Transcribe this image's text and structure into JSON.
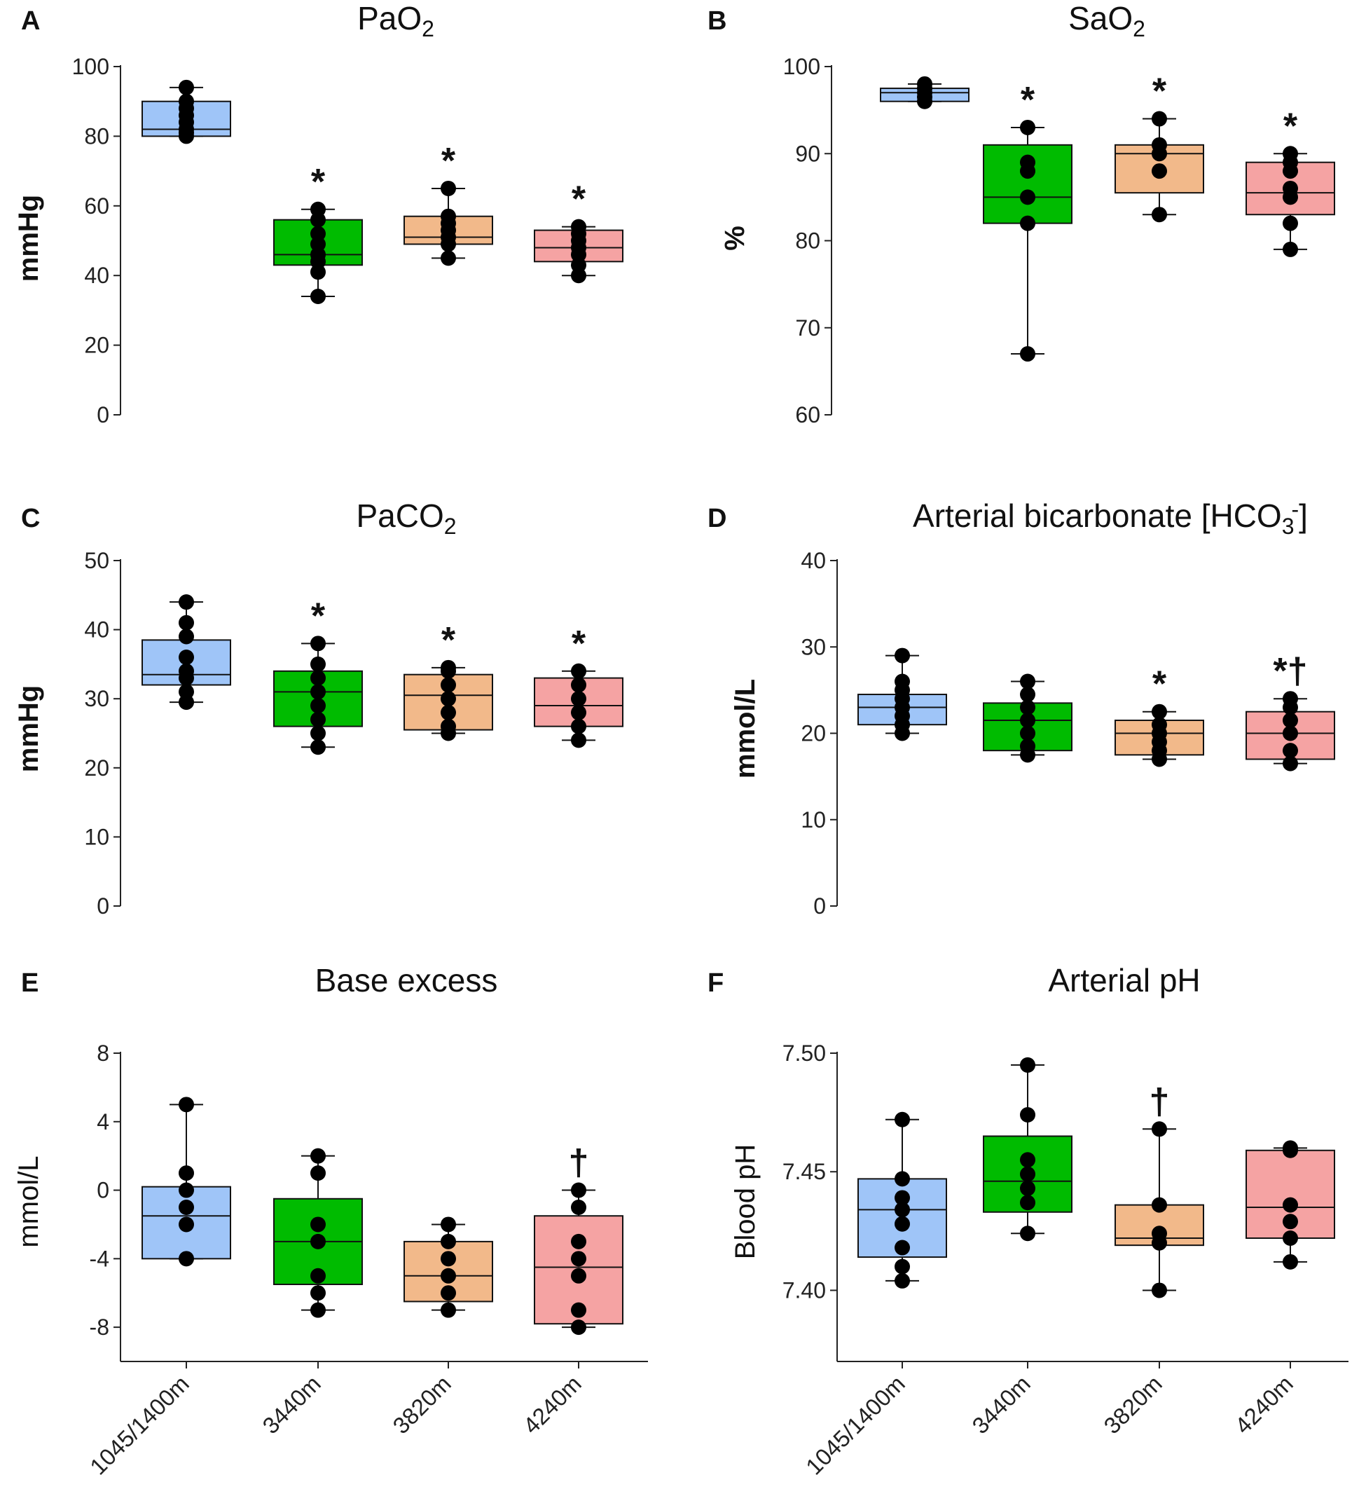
{
  "groups": [
    "1045/1400m",
    "3440m",
    "3820m",
    "4240m"
  ],
  "group_colors": [
    "#9fc5f8",
    "#00bb00",
    "#f2b98a",
    "#f5a3a3"
  ],
  "chart_data": [
    {
      "panel": "A",
      "type": "boxplot",
      "title": "PaO",
      "title_sub": "2",
      "title_sup": "",
      "title_tail": "",
      "ylabel": "mmHg",
      "ylabel_bold": true,
      "ylim": [
        0,
        100
      ],
      "yticks": [
        0,
        20,
        40,
        60,
        80,
        100
      ],
      "ytick_labels": [
        "0",
        "20",
        "40",
        "60",
        "80",
        "100"
      ],
      "boxes": [
        {
          "group": "1045/1400m",
          "min": 80,
          "q1": 80,
          "median": 82,
          "q3": 90,
          "max": 94,
          "points": [
            80,
            81,
            82,
            84,
            86,
            88,
            90,
            94
          ],
          "sig": ""
        },
        {
          "group": "3440m",
          "min": 34,
          "q1": 43,
          "median": 46,
          "q3": 56,
          "max": 59,
          "points": [
            34,
            41,
            44,
            46,
            49,
            52,
            56,
            59
          ],
          "sig": "*"
        },
        {
          "group": "3820m",
          "min": 45,
          "q1": 49,
          "median": 51,
          "q3": 57,
          "max": 65,
          "points": [
            45,
            49,
            51,
            53,
            55,
            57,
            65
          ],
          "sig": "*"
        },
        {
          "group": "4240m",
          "min": 40,
          "q1": 44,
          "median": 48,
          "q3": 53,
          "max": 54,
          "points": [
            40,
            43,
            46,
            48,
            50,
            52,
            54
          ],
          "sig": "*"
        }
      ]
    },
    {
      "panel": "B",
      "type": "boxplot",
      "title": "SaO",
      "title_sub": "2",
      "title_sup": "",
      "title_tail": "",
      "ylabel": "%",
      "ylabel_bold": true,
      "ylim": [
        60,
        100
      ],
      "yticks": [
        60,
        70,
        80,
        90,
        100
      ],
      "ytick_labels": [
        "60",
        "70",
        "80",
        "90",
        "100"
      ],
      "boxes": [
        {
          "group": "1045/1400m",
          "min": 96,
          "q1": 96,
          "median": 97,
          "q3": 97.5,
          "max": 98,
          "points": [
            96,
            96.5,
            97,
            97.5,
            98
          ],
          "sig": ""
        },
        {
          "group": "3440m",
          "min": 67,
          "q1": 82,
          "median": 85,
          "q3": 91,
          "max": 93,
          "points": [
            67,
            82,
            85,
            88,
            89,
            93
          ],
          "sig": "*"
        },
        {
          "group": "3820m",
          "min": 83,
          "q1": 85.5,
          "median": 90,
          "q3": 91,
          "max": 94,
          "points": [
            83,
            88,
            90,
            91,
            94
          ],
          "sig": "*"
        },
        {
          "group": "4240m",
          "min": 79,
          "q1": 83,
          "median": 85.5,
          "q3": 89,
          "max": 90,
          "points": [
            79,
            82,
            85,
            86,
            88,
            89,
            90
          ],
          "sig": "*"
        }
      ]
    },
    {
      "panel": "C",
      "type": "boxplot",
      "title": "PaCO",
      "title_sub": "2",
      "title_sup": "",
      "title_tail": "",
      "ylabel": "mmHg",
      "ylabel_bold": true,
      "ylim": [
        0,
        50
      ],
      "yticks": [
        0,
        10,
        20,
        30,
        40,
        50
      ],
      "ytick_labels": [
        "0",
        "10",
        "20",
        "30",
        "40",
        "50"
      ],
      "boxes": [
        {
          "group": "1045/1400m",
          "min": 29.5,
          "q1": 32,
          "median": 33.5,
          "q3": 38.5,
          "max": 44,
          "points": [
            29.5,
            31,
            33,
            34,
            36,
            39,
            41,
            44
          ],
          "sig": ""
        },
        {
          "group": "3440m",
          "min": 23,
          "q1": 26,
          "median": 31,
          "q3": 34,
          "max": 38,
          "points": [
            23,
            25,
            27,
            29,
            31,
            33,
            35,
            38
          ],
          "sig": "*"
        },
        {
          "group": "3820m",
          "min": 25,
          "q1": 25.5,
          "median": 30.5,
          "q3": 33.5,
          "max": 34.5,
          "points": [
            25,
            26,
            28,
            30,
            32,
            34,
            34.5
          ],
          "sig": "*"
        },
        {
          "group": "4240m",
          "min": 24,
          "q1": 26,
          "median": 29,
          "q3": 33,
          "max": 34,
          "points": [
            24,
            26,
            28,
            30,
            32,
            34
          ],
          "sig": "*"
        }
      ]
    },
    {
      "panel": "D",
      "type": "boxplot",
      "title": "Arterial bicarbonate [HCO",
      "title_sub": "3",
      "title_sup": "-",
      "title_tail": "]",
      "ylabel": "mmol/L",
      "ylabel_bold": true,
      "ylim": [
        0,
        40
      ],
      "yticks": [
        0,
        10,
        20,
        30,
        40
      ],
      "ytick_labels": [
        "0",
        "10",
        "20",
        "30",
        "40"
      ],
      "boxes": [
        {
          "group": "1045/1400m",
          "min": 20,
          "q1": 21,
          "median": 23,
          "q3": 24.5,
          "max": 29,
          "points": [
            20,
            21,
            22,
            23,
            24,
            25,
            26,
            29
          ],
          "sig": ""
        },
        {
          "group": "3440m",
          "min": 17.5,
          "q1": 18,
          "median": 21.5,
          "q3": 23.5,
          "max": 26,
          "points": [
            17.5,
            18.5,
            20,
            21.5,
            23,
            24.5,
            26
          ],
          "sig": ""
        },
        {
          "group": "3820m",
          "min": 17,
          "q1": 17.5,
          "median": 20,
          "q3": 21.5,
          "max": 22.5,
          "points": [
            17,
            18,
            19,
            20,
            21,
            22.5
          ],
          "sig": "*"
        },
        {
          "group": "4240m",
          "min": 16.5,
          "q1": 17,
          "median": 20,
          "q3": 22.5,
          "max": 24,
          "points": [
            16.5,
            18,
            20,
            21.5,
            23,
            24
          ],
          "sig": "*†"
        }
      ]
    },
    {
      "panel": "E",
      "type": "boxplot",
      "title": "Base excess",
      "title_sub": "",
      "title_sup": "",
      "title_tail": "",
      "ylabel": "mmol/L",
      "ylabel_bold": false,
      "ylim": [
        -10,
        8
      ],
      "yticks": [
        -8,
        -4,
        0,
        4,
        8
      ],
      "ytick_labels": [
        "-8",
        "-4",
        "0",
        "4",
        "8"
      ],
      "boxes": [
        {
          "group": "1045/1400m",
          "min": -4,
          "q1": -4,
          "median": -1.5,
          "q3": 0.2,
          "max": 5,
          "points": [
            -4,
            -2,
            -1,
            0,
            1,
            5
          ],
          "sig": ""
        },
        {
          "group": "3440m",
          "min": -7,
          "q1": -5.5,
          "median": -3,
          "q3": -0.5,
          "max": 2,
          "points": [
            -7,
            -6,
            -5,
            -3,
            -2,
            1,
            2
          ],
          "sig": ""
        },
        {
          "group": "3820m",
          "min": -7,
          "q1": -6.5,
          "median": -5,
          "q3": -3,
          "max": -2,
          "points": [
            -7,
            -6,
            -5,
            -4,
            -3,
            -2
          ],
          "sig": ""
        },
        {
          "group": "4240m",
          "min": -8,
          "q1": -7.8,
          "median": -4.5,
          "q3": -1.5,
          "max": 0,
          "points": [
            -8,
            -7,
            -5,
            -4,
            -3,
            -1,
            0
          ],
          "sig": "†"
        }
      ]
    },
    {
      "panel": "F",
      "type": "boxplot",
      "title": "Arterial pH",
      "title_sub": "",
      "title_sup": "",
      "title_tail": "",
      "ylabel": "Blood pH",
      "ylabel_bold": false,
      "ylim": [
        7.37,
        7.5
      ],
      "yticks": [
        7.4,
        7.45,
        7.5
      ],
      "ytick_labels": [
        "7.40",
        "7.45",
        "7.50"
      ],
      "boxes": [
        {
          "group": "1045/1400m",
          "min": 7.404,
          "q1": 7.414,
          "median": 7.434,
          "q3": 7.447,
          "max": 7.472,
          "points": [
            7.404,
            7.41,
            7.418,
            7.428,
            7.434,
            7.439,
            7.447,
            7.472
          ],
          "sig": ""
        },
        {
          "group": "3440m",
          "min": 7.424,
          "q1": 7.433,
          "median": 7.446,
          "q3": 7.465,
          "max": 7.495,
          "points": [
            7.424,
            7.437,
            7.443,
            7.449,
            7.455,
            7.474,
            7.495
          ],
          "sig": ""
        },
        {
          "group": "3820m",
          "min": 7.4,
          "q1": 7.419,
          "median": 7.422,
          "q3": 7.436,
          "max": 7.468,
          "points": [
            7.4,
            7.42,
            7.424,
            7.436,
            7.468
          ],
          "sig": "†"
        },
        {
          "group": "4240m",
          "min": 7.412,
          "q1": 7.422,
          "median": 7.435,
          "q3": 7.459,
          "max": 7.46,
          "points": [
            7.412,
            7.422,
            7.429,
            7.436,
            7.459,
            7.46
          ],
          "sig": ""
        }
      ]
    }
  ]
}
